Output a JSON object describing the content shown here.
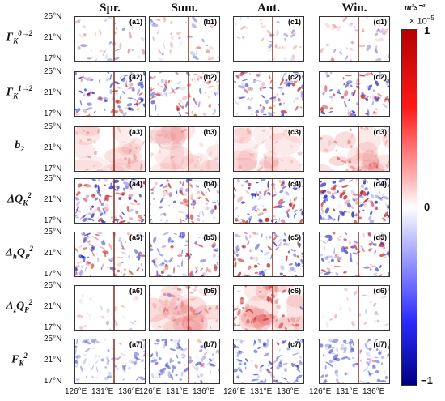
{
  "columns": [
    "Spr.",
    "Sum.",
    "Aut.",
    "Win."
  ],
  "rows": [
    {
      "base": "Γ",
      "sub": "K",
      "sup": "0→2"
    },
    {
      "base": "Γ",
      "sub": "K",
      "sup": "1→2"
    },
    {
      "base": "b",
      "sub": "2",
      "sup": ""
    },
    {
      "base": "ΔQ",
      "sub": "K",
      "sup": "2"
    },
    {
      "base": "Δ",
      "sub": "h",
      "sup": "",
      "base2": "Q",
      "sub2": "P",
      "sup2": "2"
    },
    {
      "base": "Δ",
      "sub": "z",
      "sup": "",
      "base2": "Q",
      "sub2": "P",
      "sup2": "2"
    },
    {
      "base": "F",
      "sub": "K",
      "sup": "2"
    }
  ],
  "panel_labels": [
    [
      "(a1)",
      "(b1)",
      "(c1)",
      "(d1)"
    ],
    [
      "(a2)",
      "(b2)",
      "(c2)",
      "(d2)"
    ],
    [
      "(a3)",
      "(b3)",
      "(c3)",
      "(d3)"
    ],
    [
      "(a4)",
      "(b4)",
      "(c4)",
      "(d4)"
    ],
    [
      "(a5)",
      "(b5)",
      "(c5)",
      "(d5)"
    ],
    [
      "(a6)",
      "(b6)",
      "(c6)",
      "(d6)"
    ],
    [
      "(a7)",
      "(b7)",
      "(c7)",
      "(d7)"
    ]
  ],
  "y_ticks": [
    "25°N",
    "21°N",
    "17°N"
  ],
  "x_ticks": [
    "126°E",
    "131°E",
    "136°E"
  ],
  "colorbar": {
    "unit": "m³s⁻³",
    "scale_prefix": "× 10",
    "scale_exp": "−5",
    "ticks": [
      "1",
      "0",
      "−1"
    ],
    "color_max": "#b40000",
    "color_mid": "#ffffff",
    "color_min": "#000080"
  }
}
